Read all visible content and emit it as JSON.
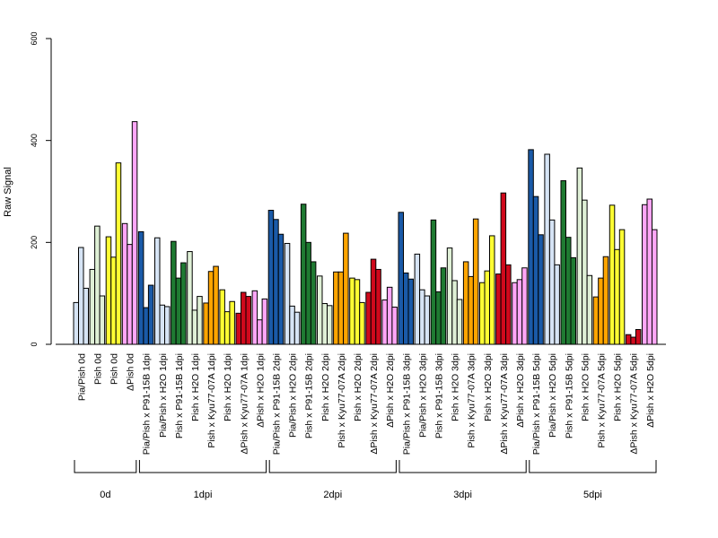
{
  "chart_data": {
    "type": "bar",
    "ylabel": "Raw Signal",
    "ylim": [
      0,
      600
    ],
    "yticks": [
      0,
      200,
      400,
      600
    ],
    "grid": false,
    "colors": {
      "pia_pish": "#d6e4f5",
      "pish": "#dff0d6",
      "yellow": "#ffff33",
      "dpish": "#ffa6f7",
      "blue": "#1a5aa8",
      "green": "#1f7a32",
      "orange": "#ffa500",
      "red": "#d0091c"
    },
    "categories": [
      {
        "label": "Pia/Pish 0d",
        "color": "pia_pish",
        "values": [
          82,
          190,
          110
        ]
      },
      {
        "label": "Pish 0d",
        "color": "pish",
        "values": [
          147,
          232,
          95
        ]
      },
      {
        "label": "Pish 0d",
        "color": "yellow",
        "values": [
          211,
          171,
          356
        ]
      },
      {
        "label": "ΔPish 0d",
        "color": "dpish",
        "values": [
          237,
          196,
          437
        ]
      },
      {
        "label": "Pia/Pish x P91-15B 1dpi",
        "color": "blue",
        "values": [
          221,
          72,
          116
        ]
      },
      {
        "label": "Pia/Pish x H2O 1dpi",
        "color": "pia_pish",
        "values": [
          209,
          77,
          74
        ]
      },
      {
        "label": "Pish x P91-15B 1dpi",
        "color": "green",
        "values": [
          202,
          130,
          160
        ]
      },
      {
        "label": "Pish x H2O 1dpi",
        "color": "pish",
        "values": [
          182,
          67,
          94
        ]
      },
      {
        "label": "Pish x Kyu77-07A 1dpi",
        "color": "orange",
        "values": [
          81,
          143,
          153
        ]
      },
      {
        "label": "Pish x H2O 1dpi",
        "color": "yellow",
        "values": [
          107,
          64,
          84
        ]
      },
      {
        "label": "ΔPish x Kyu77-07A 1dpi",
        "color": "red",
        "values": [
          61,
          102,
          94
        ]
      },
      {
        "label": "ΔPish x H2O 1dpi",
        "color": "dpish",
        "values": [
          105,
          48,
          89
        ]
      },
      {
        "label": "Pia/Pish x P91-15B 2dpi",
        "color": "blue",
        "values": [
          263,
          245,
          216
        ]
      },
      {
        "label": "Pia/Pish x H2O 2dpi",
        "color": "pia_pish",
        "values": [
          198,
          75,
          63
        ]
      },
      {
        "label": "Pish x P91-15B 2dpi",
        "color": "green",
        "values": [
          275,
          200,
          162
        ]
      },
      {
        "label": "Pish x H2O 2dpi",
        "color": "pish",
        "values": [
          134,
          80,
          76
        ]
      },
      {
        "label": "Pish x Kyu77-07A 2dpi",
        "color": "orange",
        "values": [
          142,
          142,
          218
        ]
      },
      {
        "label": "Pish x H2O 2dpi",
        "color": "yellow",
        "values": [
          130,
          127,
          82
        ]
      },
      {
        "label": "ΔPish x Kyu77-07A 2dpi",
        "color": "red",
        "values": [
          102,
          167,
          147
        ]
      },
      {
        "label": "ΔPish x H2O 2dpi",
        "color": "dpish",
        "values": [
          87,
          112,
          73
        ]
      },
      {
        "label": "Pia/Pish x P91-15B 3dpi",
        "color": "blue",
        "values": [
          259,
          140,
          128
        ]
      },
      {
        "label": "Pia/Pish x H2O 3dpi",
        "color": "pia_pish",
        "values": [
          177,
          107,
          95
        ]
      },
      {
        "label": "Pish x P91-15B 3dpi",
        "color": "green",
        "values": [
          244,
          103,
          150
        ]
      },
      {
        "label": "Pish x H2O 3dpi",
        "color": "pish",
        "values": [
          189,
          125,
          88
        ]
      },
      {
        "label": "Pish x Kyu77-07A 3dpi",
        "color": "orange",
        "values": [
          162,
          133,
          246
        ]
      },
      {
        "label": "Pish x H2O 3dpi",
        "color": "yellow",
        "values": [
          121,
          144,
          213
        ]
      },
      {
        "label": "ΔPish x Kyu77-07A 3dpi",
        "color": "red",
        "values": [
          138,
          297,
          156
        ]
      },
      {
        "label": "ΔPish x H2O 3dpi",
        "color": "dpish",
        "values": [
          121,
          127,
          150
        ]
      },
      {
        "label": "Pia/Pish x P91-15B 5dpi",
        "color": "blue",
        "values": [
          382,
          290,
          215
        ]
      },
      {
        "label": "Pia/Pish x H2O 5dpi",
        "color": "pia_pish",
        "values": [
          373,
          244,
          156
        ]
      },
      {
        "label": "Pish x P91-15B 5dpi",
        "color": "green",
        "values": [
          321,
          210,
          170
        ]
      },
      {
        "label": "Pish x H2O 5dpi",
        "color": "pish",
        "values": [
          346,
          283,
          135
        ]
      },
      {
        "label": "Pish x Kyu77-07A 5dpi",
        "color": "orange",
        "values": [
          93,
          130,
          172
        ]
      },
      {
        "label": "Pish x H2O 5dpi",
        "color": "yellow",
        "values": [
          273,
          186,
          225
        ]
      },
      {
        "label": "ΔPish x Kyu77-07A 5dpi",
        "color": "red",
        "values": [
          19,
          14,
          29
        ]
      },
      {
        "label": "ΔPish x H2O 5dpi",
        "color": "dpish",
        "values": [
          274,
          285,
          225
        ]
      }
    ],
    "groups": [
      {
        "label": "0d",
        "start": 0,
        "end": 3
      },
      {
        "label": "1dpi",
        "start": 4,
        "end": 11
      },
      {
        "label": "2dpi",
        "start": 12,
        "end": 19
      },
      {
        "label": "3dpi",
        "start": 20,
        "end": 27
      },
      {
        "label": "5dpi",
        "start": 28,
        "end": 35
      }
    ]
  }
}
